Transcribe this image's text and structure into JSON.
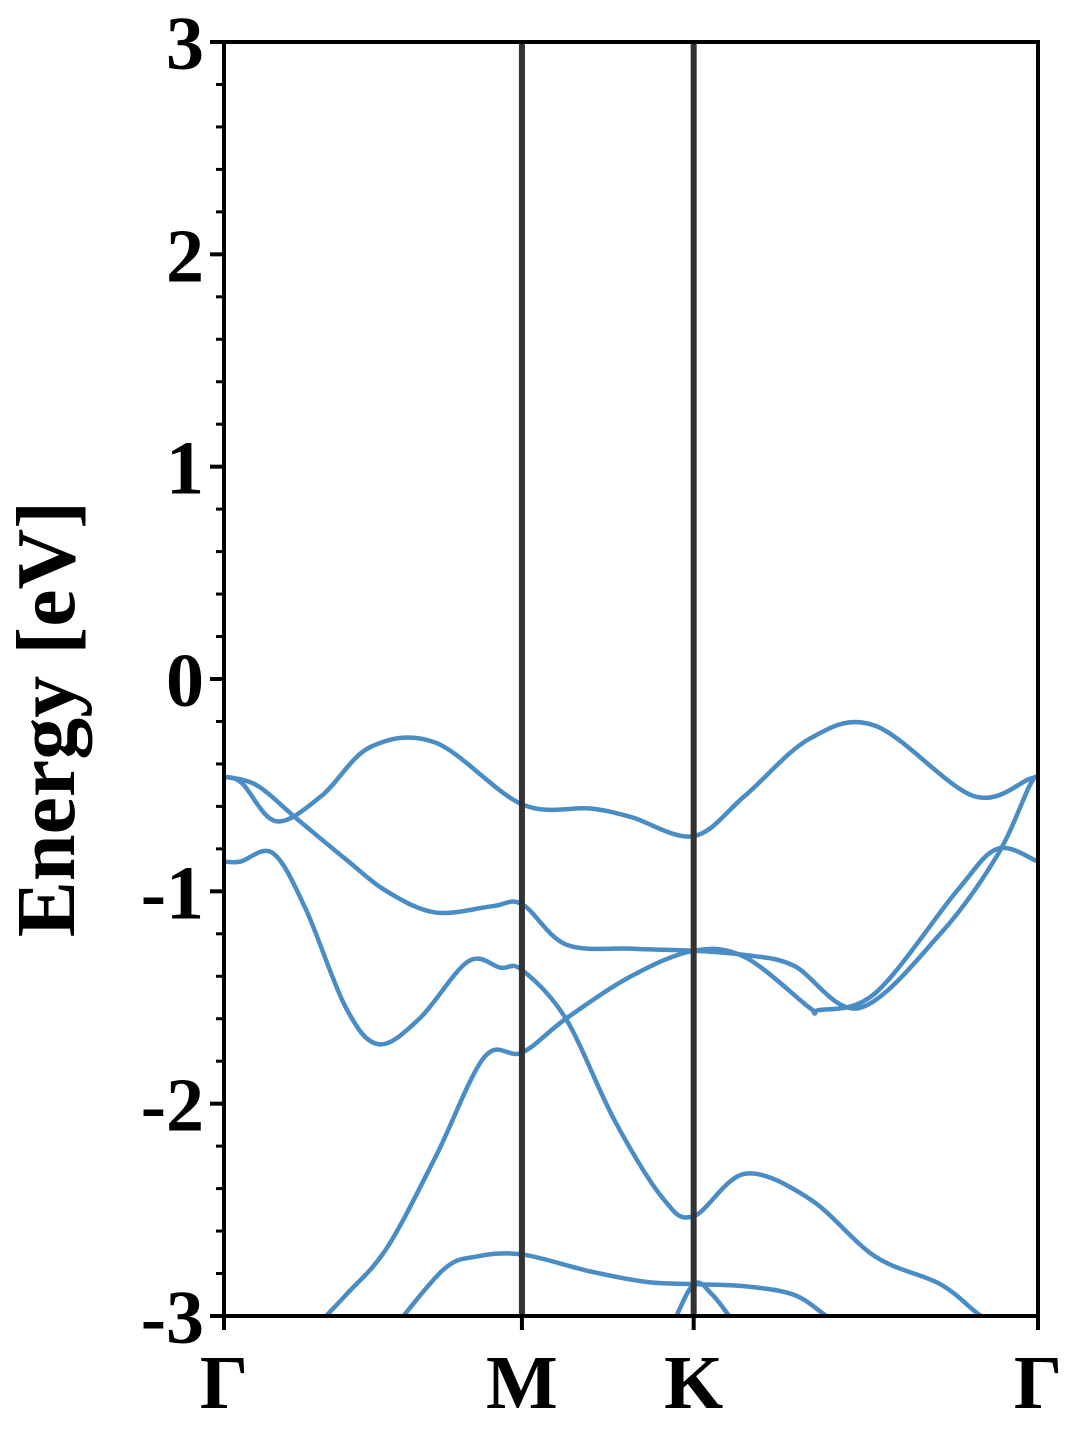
{
  "chart_data": {
    "type": "line",
    "title": "",
    "xlabel": "",
    "ylabel": "Energy [eV]",
    "ylim": [
      -3,
      3
    ],
    "xlim": [
      0,
      1
    ],
    "grid": false,
    "legend": "none",
    "line_color": "#4a8cc4",
    "kpath": [
      {
        "label": "Γ",
        "x": 0.0
      },
      {
        "label": "M",
        "x": 0.366
      },
      {
        "label": "K",
        "x": 0.577
      },
      {
        "label": "Γ",
        "x": 1.0
      }
    ],
    "yticks": [
      {
        "value": 3,
        "label": "3"
      },
      {
        "value": 2,
        "label": "2"
      },
      {
        "value": 1,
        "label": "1"
      },
      {
        "value": 0,
        "label": "0"
      },
      {
        "value": -1,
        "label": "-1"
      },
      {
        "value": -2,
        "label": "-2"
      },
      {
        "value": -3,
        "label": "-3"
      }
    ],
    "series": [
      {
        "x": [
          0.0,
          0.022,
          0.064,
          0.12,
          0.18,
          0.26,
          0.366,
          0.45,
          0.5,
          0.577,
          0.64,
          0.72,
          0.8,
          0.92,
          0.99,
          1.0
        ],
        "y": [
          -0.46,
          -0.49,
          -0.67,
          -0.55,
          -0.32,
          -0.3,
          -0.59,
          -0.61,
          -0.65,
          -0.74,
          -0.55,
          -0.28,
          -0.22,
          -0.55,
          -0.47,
          -0.46
        ]
      },
      {
        "x": [
          0.0,
          0.04,
          0.09,
          0.15,
          0.2,
          0.26,
          0.33,
          0.366,
          0.42,
          0.5,
          0.577,
          0.64,
          0.7,
          0.78,
          0.88,
          0.95,
          0.99,
          1.0
        ],
        "y": [
          -0.46,
          -0.5,
          -0.66,
          -0.85,
          -1.0,
          -1.1,
          -1.07,
          -1.06,
          -1.25,
          -1.27,
          -1.28,
          -1.3,
          -1.35,
          -1.55,
          -1.2,
          -0.83,
          -0.5,
          -0.46
        ]
      },
      {
        "x": [
          0.0,
          0.02,
          0.06,
          0.1,
          0.15,
          0.19,
          0.24,
          0.3,
          0.34,
          0.366,
          0.42,
          0.48,
          0.54,
          0.577,
          0.64,
          0.72,
          0.8,
          0.88,
          0.93,
          0.96,
          1.0
        ],
        "y": [
          -0.86,
          -0.86,
          -0.82,
          -1.08,
          -1.55,
          -1.72,
          -1.6,
          -1.33,
          -1.36,
          -1.37,
          -1.6,
          -2.08,
          -2.45,
          -2.53,
          -2.33,
          -2.45,
          -2.72,
          -2.85,
          -3.0,
          -3.05,
          -3.05
        ]
      },
      {
        "x": [
          0.1,
          0.15,
          0.2,
          0.26,
          0.32,
          0.366,
          0.42,
          0.5,
          0.577,
          0.64,
          0.72,
          0.73,
          0.8,
          0.9,
          0.95,
          1.0
        ],
        "y": [
          -3.1,
          -2.9,
          -2.68,
          -2.25,
          -1.78,
          -1.76,
          -1.6,
          -1.4,
          -1.28,
          -1.31,
          -1.55,
          -1.56,
          -1.48,
          -1.0,
          -0.8,
          -0.86
        ]
      },
      {
        "x": [
          0.21,
          0.27,
          0.31,
          0.366,
          0.45,
          0.52,
          0.577,
          0.64,
          0.7,
          0.74,
          0.76
        ],
        "y": [
          -3.05,
          -2.78,
          -2.72,
          -2.71,
          -2.79,
          -2.84,
          -2.85,
          -2.86,
          -2.9,
          -3.0,
          -3.05
        ]
      },
      {
        "x": [
          0.55,
          0.577,
          0.6,
          0.63
        ],
        "y": [
          -3.05,
          -2.85,
          -2.9,
          -3.05
        ]
      }
    ]
  }
}
